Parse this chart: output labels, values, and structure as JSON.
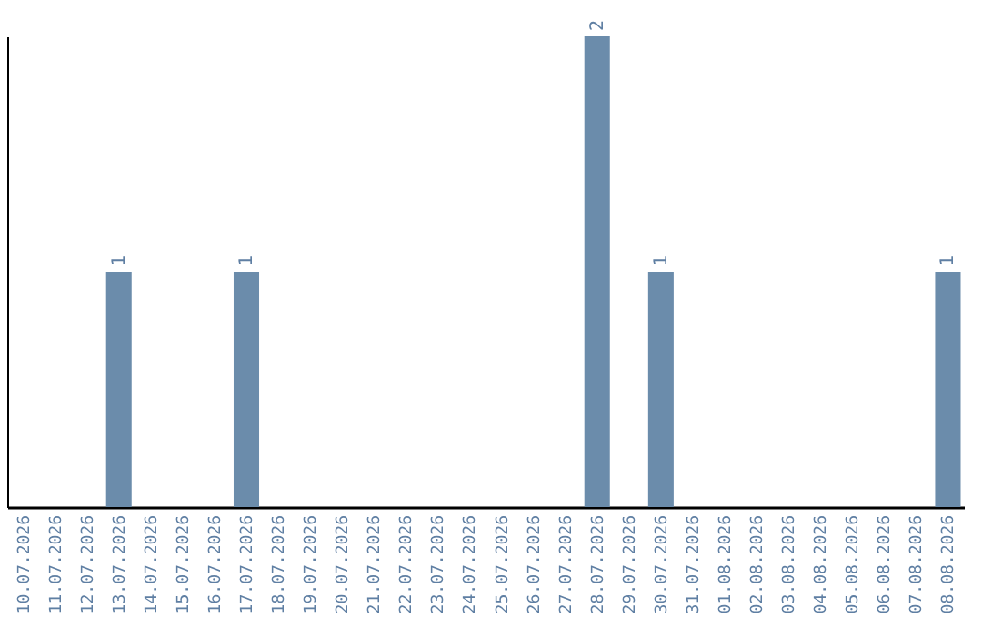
{
  "chart_data": {
    "type": "bar",
    "categories": [
      "10.07.2026",
      "11.07.2026",
      "12.07.2026",
      "13.07.2026",
      "14.07.2026",
      "15.07.2026",
      "16.07.2026",
      "17.07.2026",
      "18.07.2026",
      "19.07.2026",
      "20.07.2026",
      "21.07.2026",
      "22.07.2026",
      "23.07.2026",
      "24.07.2026",
      "25.07.2026",
      "26.07.2026",
      "27.07.2026",
      "28.07.2026",
      "29.07.2026",
      "30.07.2026",
      "31.07.2026",
      "01.08.2026",
      "02.08.2026",
      "03.08.2026",
      "04.08.2026",
      "05.08.2026",
      "06.08.2026",
      "07.08.2026",
      "08.08.2026"
    ],
    "values": [
      0,
      0,
      0,
      1,
      0,
      0,
      0,
      1,
      0,
      0,
      0,
      0,
      0,
      0,
      0,
      0,
      0,
      0,
      2,
      0,
      1,
      0,
      0,
      0,
      0,
      0,
      0,
      0,
      0,
      1
    ],
    "value_labels": [
      null,
      null,
      null,
      "1",
      null,
      null,
      null,
      "1",
      null,
      null,
      null,
      null,
      null,
      null,
      null,
      null,
      null,
      null,
      "2",
      null,
      "1",
      null,
      null,
      null,
      null,
      null,
      null,
      null,
      null,
      "1"
    ],
    "color": "#6b8cab",
    "tick_labels": "x"
  }
}
